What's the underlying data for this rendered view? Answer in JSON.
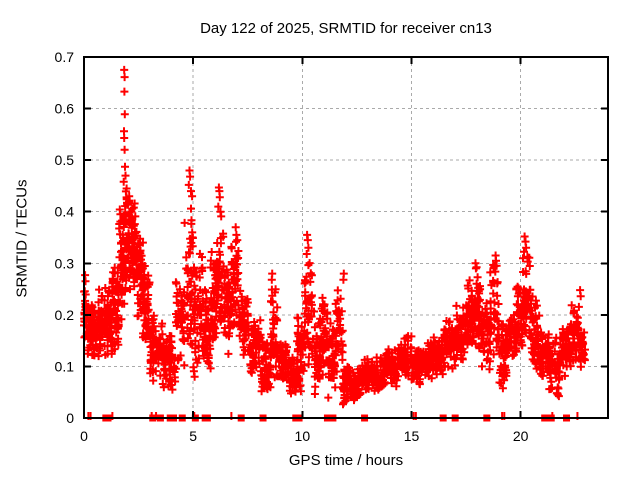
{
  "window": {
    "title": "Day 122 of 2025, SRMTID for receiver cn13"
  },
  "chart_data": {
    "type": "scatter",
    "title": "Day 122 of 2025, SRMTID for receiver cn13",
    "xlabel": "GPS time / hours",
    "ylabel": "SRMTID / TECUs",
    "xlim": [
      0,
      24
    ],
    "ylim": [
      0,
      0.7
    ],
    "xticks": [
      0,
      5,
      10,
      15,
      20
    ],
    "xtick_labels": [
      "0",
      "5",
      "10",
      "15",
      "20"
    ],
    "yticks": [
      0,
      0.1,
      0.2,
      0.3,
      0.4,
      0.5,
      0.6,
      0.7
    ],
    "ytick_labels": [
      "0",
      "0.1",
      "0.2",
      "0.3",
      "0.4",
      "0.5",
      "0.6",
      "0.7"
    ],
    "grid": true,
    "legend": false,
    "marker": "plus",
    "marker_color": "#ff0000",
    "grid_color": "#aaaaaa",
    "frame_color": "#000000",
    "seed": 122,
    "series_name": "SRMTID",
    "peak_points": [
      [
        1.84,
        0.675
      ],
      [
        1.86,
        0.661
      ],
      [
        1.85,
        0.633
      ],
      [
        1.87,
        0.589
      ],
      [
        1.83,
        0.556
      ],
      [
        1.84,
        0.543
      ],
      [
        1.86,
        0.52
      ],
      [
        1.88,
        0.487
      ],
      [
        1.9,
        0.47
      ],
      [
        1.82,
        0.458
      ],
      [
        1.95,
        0.445
      ],
      [
        0.05,
        0.277
      ],
      [
        0.07,
        0.265
      ],
      [
        4.83,
        0.48
      ],
      [
        4.86,
        0.468
      ],
      [
        4.8,
        0.452
      ],
      [
        4.9,
        0.44
      ],
      [
        4.95,
        0.43
      ],
      [
        6.18,
        0.447
      ],
      [
        6.2,
        0.44
      ],
      [
        6.22,
        0.428
      ],
      [
        6.15,
        0.41
      ],
      [
        6.25,
        0.4
      ],
      [
        6.95,
        0.37
      ],
      [
        6.98,
        0.355
      ],
      [
        7.02,
        0.345
      ],
      [
        8.62,
        0.28
      ],
      [
        8.6,
        0.268
      ],
      [
        10.22,
        0.355
      ],
      [
        10.25,
        0.345
      ],
      [
        10.28,
        0.33
      ],
      [
        10.2,
        0.318
      ],
      [
        11.9,
        0.28
      ],
      [
        11.88,
        0.268
      ],
      [
        17.93,
        0.3
      ],
      [
        17.95,
        0.29
      ],
      [
        18.85,
        0.315
      ],
      [
        18.87,
        0.305
      ],
      [
        18.83,
        0.295
      ],
      [
        20.18,
        0.352
      ],
      [
        20.22,
        0.342
      ],
      [
        20.25,
        0.33
      ],
      [
        22.72,
        0.248
      ],
      [
        22.75,
        0.236
      ]
    ],
    "envelope_bands": [
      [
        0.0,
        0.12,
        0.13,
        0.28,
        20
      ],
      [
        0.12,
        0.5,
        0.1,
        0.23,
        55
      ],
      [
        0.5,
        0.9,
        0.1,
        0.25,
        60
      ],
      [
        0.9,
        1.3,
        0.11,
        0.26,
        60
      ],
      [
        1.3,
        1.6,
        0.12,
        0.31,
        50
      ],
      [
        1.6,
        1.85,
        0.18,
        0.43,
        50
      ],
      [
        1.85,
        2.1,
        0.22,
        0.47,
        55
      ],
      [
        2.1,
        2.4,
        0.24,
        0.42,
        60
      ],
      [
        2.4,
        2.7,
        0.18,
        0.38,
        50
      ],
      [
        2.7,
        3.0,
        0.12,
        0.3,
        50
      ],
      [
        3.0,
        3.6,
        0.06,
        0.22,
        60
      ],
      [
        3.6,
        4.2,
        0.05,
        0.17,
        65
      ],
      [
        4.2,
        4.6,
        0.09,
        0.28,
        50
      ],
      [
        4.6,
        5.0,
        0.1,
        0.42,
        45
      ],
      [
        5.0,
        5.45,
        0.07,
        0.33,
        55
      ],
      [
        5.45,
        5.8,
        0.08,
        0.26,
        45
      ],
      [
        5.8,
        6.1,
        0.12,
        0.36,
        45
      ],
      [
        6.1,
        6.4,
        0.14,
        0.42,
        40
      ],
      [
        6.4,
        6.75,
        0.12,
        0.31,
        45
      ],
      [
        6.75,
        7.1,
        0.14,
        0.35,
        45
      ],
      [
        7.1,
        7.6,
        0.11,
        0.26,
        55
      ],
      [
        7.6,
        8.1,
        0.07,
        0.2,
        55
      ],
      [
        8.1,
        8.55,
        0.04,
        0.15,
        50
      ],
      [
        8.55,
        8.85,
        0.06,
        0.26,
        40
      ],
      [
        8.85,
        9.35,
        0.05,
        0.16,
        50
      ],
      [
        9.35,
        9.75,
        0.04,
        0.13,
        45
      ],
      [
        9.75,
        10.1,
        0.05,
        0.21,
        45
      ],
      [
        10.1,
        10.45,
        0.09,
        0.33,
        45
      ],
      [
        10.45,
        10.8,
        0.04,
        0.22,
        40
      ],
      [
        10.8,
        11.15,
        0.06,
        0.27,
        45
      ],
      [
        11.15,
        11.5,
        0.03,
        0.19,
        40
      ],
      [
        11.5,
        11.85,
        0.05,
        0.26,
        40
      ],
      [
        11.85,
        12.2,
        0.02,
        0.11,
        45
      ],
      [
        12.2,
        12.7,
        0.03,
        0.1,
        55
      ],
      [
        12.7,
        13.2,
        0.05,
        0.12,
        55
      ],
      [
        13.2,
        13.8,
        0.04,
        0.12,
        60
      ],
      [
        13.8,
        14.4,
        0.06,
        0.14,
        60
      ],
      [
        14.4,
        15.0,
        0.07,
        0.17,
        60
      ],
      [
        15.0,
        15.5,
        0.06,
        0.14,
        55
      ],
      [
        15.5,
        16.0,
        0.07,
        0.16,
        55
      ],
      [
        16.0,
        16.5,
        0.08,
        0.16,
        50
      ],
      [
        16.5,
        17.0,
        0.09,
        0.2,
        55
      ],
      [
        17.0,
        17.5,
        0.1,
        0.22,
        55
      ],
      [
        17.5,
        17.85,
        0.11,
        0.27,
        45
      ],
      [
        17.85,
        18.15,
        0.12,
        0.3,
        40
      ],
      [
        18.15,
        18.6,
        0.09,
        0.24,
        45
      ],
      [
        18.6,
        19.0,
        0.11,
        0.31,
        40
      ],
      [
        19.0,
        19.35,
        0.04,
        0.21,
        40
      ],
      [
        19.35,
        19.8,
        0.09,
        0.22,
        45
      ],
      [
        19.8,
        20.1,
        0.11,
        0.28,
        40
      ],
      [
        20.1,
        20.45,
        0.13,
        0.34,
        45
      ],
      [
        20.45,
        20.85,
        0.09,
        0.24,
        45
      ],
      [
        20.85,
        21.3,
        0.07,
        0.18,
        50
      ],
      [
        21.3,
        21.8,
        0.03,
        0.16,
        50
      ],
      [
        21.8,
        22.3,
        0.08,
        0.19,
        50
      ],
      [
        22.3,
        22.7,
        0.1,
        0.23,
        45
      ],
      [
        22.7,
        22.95,
        0.08,
        0.18,
        30
      ]
    ],
    "zero_square_hours": [
      1.0,
      1.1,
      3.15,
      3.5,
      3.95,
      4.1,
      4.5,
      5.1,
      5.55,
      5.65,
      7.2,
      8.2,
      9.7,
      9.85,
      11.15,
      11.4,
      12.85,
      16.45,
      17.0,
      18.45,
      21.1,
      21.4,
      22.1
    ],
    "zero_tick_hours": [
      0.2,
      0.3,
      1.3,
      3.1,
      3.3,
      5.05,
      6.75,
      15.1,
      15.2,
      19.15,
      19.25,
      21.45,
      22.6
    ]
  }
}
